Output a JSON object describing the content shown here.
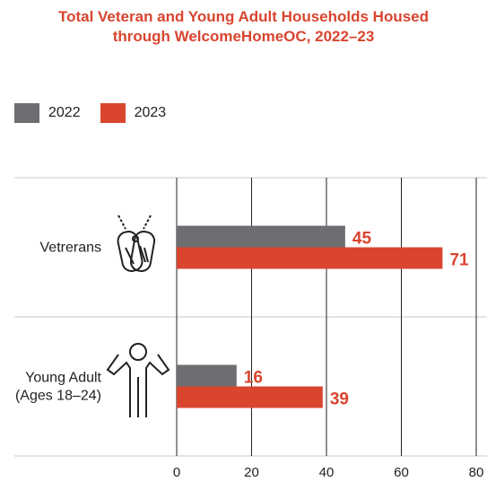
{
  "title_line1": "Total Veteran and Young Adult Households Housed",
  "title_line2": "through WelcomeHomeOC, 2022–23",
  "colors": {
    "2022": "#6e6e72",
    "2023": "#d9452f",
    "title": "#d9452f"
  },
  "chart_data": {
    "type": "bar",
    "orientation": "horizontal",
    "categories": [
      "Vetrerans",
      "Young Adult (Ages 18–24)"
    ],
    "category_lines": [
      [
        "Vetrerans"
      ],
      [
        "Young Adult",
        "(Ages 18–24)"
      ]
    ],
    "category_icons": [
      "dog-tags-icon",
      "person-arms-raised-icon"
    ],
    "series": [
      {
        "name": "2022",
        "values": [
          45,
          16
        ]
      },
      {
        "name": "2023",
        "values": [
          71,
          39
        ]
      }
    ],
    "xlim": [
      0,
      80
    ],
    "xticks": [
      "0",
      "20",
      "40",
      "60",
      "80"
    ],
    "grid": true,
    "legend_position": "top-left"
  }
}
